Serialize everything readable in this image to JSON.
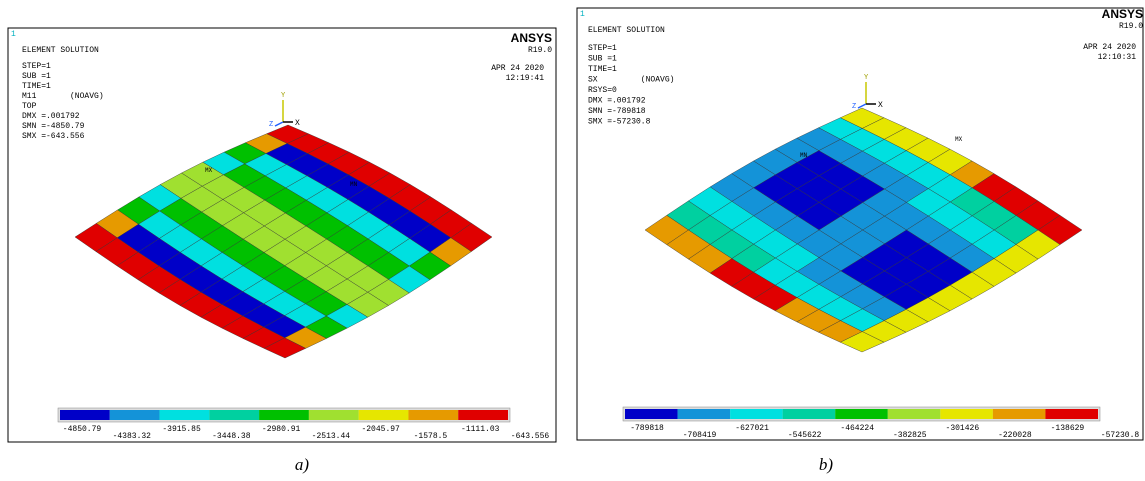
{
  "panels": [
    {
      "id_label": "1",
      "title": "ELEMENT SOLUTION",
      "info": [
        "STEP=1",
        "SUB =1",
        "TIME=1",
        "M11       (NOAVG)",
        "TOP",
        "DMX =.001792",
        "SMN =-4850.79",
        "SMX =-643.556"
      ],
      "brand": "ANSYS",
      "version": "R19.0",
      "date": "APR 24 2020",
      "time": "12:19:41",
      "markers": {
        "mx": "MX",
        "mn": "MN"
      },
      "axes": {
        "x": "X",
        "y": "Y",
        "z": "Z"
      },
      "legend": [
        "-4850.79",
        "-4383.32",
        "-3915.85",
        "-3448.38",
        "-2980.91",
        "-2513.44",
        "-2045.97",
        "-1578.5",
        "-1111.03",
        "-643.556"
      ],
      "caption": "a)"
    },
    {
      "id_label": "1",
      "title": "ELEMENT SOLUTION",
      "info": [
        "STEP=1",
        "SUB =1",
        "TIME=1",
        "SX         (NOAVG)",
        "RSYS=0",
        "DMX =.001792",
        "SMN =-789818",
        "SMX =-57230.8"
      ],
      "brand": "ANSYS",
      "version": "R19.0",
      "date": "APR 24 2020",
      "time": "12:10:31",
      "markers": {
        "mx": "MX",
        "mn": "MN"
      },
      "axes": {
        "x": "X",
        "y": "Y",
        "z": "Z"
      },
      "legend": [
        "-789818",
        "-708419",
        "-627021",
        "-545622",
        "-464224",
        "-382825",
        "-301426",
        "-220028",
        "-138629",
        "-57230.8"
      ],
      "caption": "b)"
    }
  ],
  "legend_colors": [
    "#0000c8",
    "#1493d8",
    "#00e0e0",
    "#00d0a0",
    "#00c000",
    "#a0e030",
    "#e6e600",
    "#e69a00",
    "#e00000"
  ]
}
